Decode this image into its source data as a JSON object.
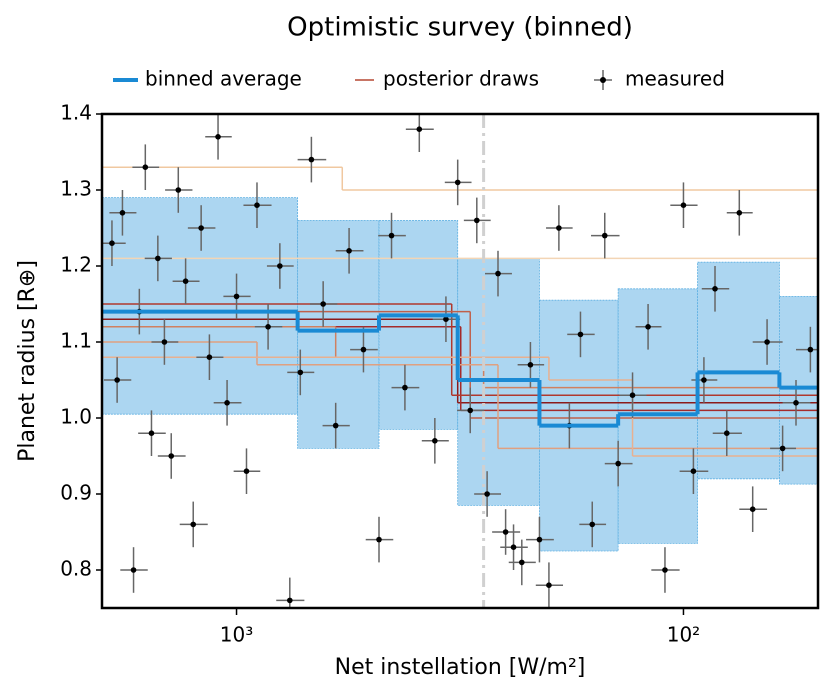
{
  "chart_data": {
    "type": "step",
    "title": "Optimistic survey (binned)",
    "xlabel": "Net instellation [W/m²]",
    "ylabel": "Planet radius [R⊕]",
    "xscale": "log",
    "xlim": [
      2000,
      50
    ],
    "ylim": [
      0.75,
      1.4
    ],
    "xticks": [
      {
        "value": 1000,
        "label": "10³"
      },
      {
        "value": 100,
        "label": "10²"
      }
    ],
    "yticks": [
      0.8,
      0.9,
      {
        "value": 1,
        "label": "1.0"
      },
      1.1,
      1.2,
      1.3,
      1.4
    ],
    "reference_line": {
      "x": 280,
      "color": "#d0d0d0"
    },
    "series": [
      {
        "name": "binned average",
        "color": "#1a8ad4",
        "band_color": "#acd6f1",
        "band_edge": "#5fb0e2",
        "edges": [
          2000,
          730,
          480,
          320,
          210,
          140,
          93,
          61,
          50
        ],
        "values": [
          1.14,
          1.115,
          1.135,
          1.05,
          0.99,
          1.005,
          1.06,
          1.04
        ],
        "band_upper": [
          1.29,
          1.26,
          1.26,
          1.21,
          1.155,
          1.17,
          1.205,
          1.16
        ],
        "band_lower": [
          1.005,
          0.96,
          0.985,
          0.885,
          0.825,
          0.835,
          0.92,
          0.913
        ]
      },
      {
        "name": "posterior draws",
        "color": "#c87565",
        "draws": [
          {
            "color": "#8b1a1a",
            "edges": [
              2000,
              320,
              50
            ],
            "values": [
              1.13,
              1.02
            ]
          },
          {
            "color": "#a52a2a",
            "edges": [
              2000,
              315,
              50
            ],
            "values": [
              1.12,
              1.01
            ]
          },
          {
            "color": "#b0392e",
            "edges": [
              2000,
              330,
              50
            ],
            "values": [
              1.15,
              1.03
            ]
          },
          {
            "color": "#c0604a",
            "edges": [
              2000,
              300,
              50
            ],
            "values": [
              1.14,
              1.0
            ]
          },
          {
            "color": "#d08060",
            "edges": [
              2000,
              600,
              280,
              50
            ],
            "values": [
              1.12,
              1.08,
              1.04
            ]
          },
          {
            "color": "#e0a080",
            "edges": [
              2000,
              900,
              260,
              50
            ],
            "values": [
              1.1,
              1.07,
              0.96
            ]
          },
          {
            "color": "#f0c8a0",
            "edges": [
              2000,
              580,
              50
            ],
            "values": [
              1.33,
              1.3
            ]
          },
          {
            "color": "#f3d5b5",
            "edges": [
              2000,
              50
            ],
            "values": [
              1.21
            ]
          },
          {
            "color": "#e8b090",
            "edges": [
              2000,
              200,
              130,
              50
            ],
            "values": [
              1.08,
              1.05,
              0.95
            ]
          }
        ]
      },
      {
        "name": "measured",
        "color": "#000000",
        "err_color": "#666666",
        "x": [
          1900,
          1850,
          1800,
          1700,
          1650,
          1600,
          1550,
          1500,
          1450,
          1400,
          1350,
          1300,
          1250,
          1200,
          1150,
          1100,
          1050,
          1000,
          950,
          900,
          850,
          800,
          760,
          720,
          680,
          640,
          600,
          560,
          520,
          480,
          450,
          420,
          390,
          360,
          340,
          320,
          300,
          290,
          275,
          260,
          250,
          240,
          230,
          220,
          210,
          200,
          190,
          180,
          170,
          160,
          150,
          140,
          130,
          120,
          110,
          100,
          95,
          90,
          85,
          80,
          75,
          70,
          65,
          60,
          56,
          52
        ],
        "values": [
          1.23,
          1.05,
          1.27,
          0.8,
          1.14,
          1.33,
          0.98,
          1.21,
          1.1,
          0.95,
          1.3,
          1.18,
          0.86,
          1.25,
          1.08,
          1.37,
          1.02,
          1.16,
          0.93,
          1.28,
          1.12,
          1.2,
          0.76,
          1.06,
          1.34,
          1.15,
          0.99,
          1.22,
          1.09,
          0.84,
          1.24,
          1.04,
          1.38,
          0.97,
          1.13,
          1.31,
          1.01,
          1.26,
          0.9,
          1.19,
          0.85,
          0.83,
          0.81,
          1.07,
          0.84,
          0.78,
          1.25,
          0.99,
          1.11,
          0.86,
          1.24,
          0.94,
          1.03,
          1.12,
          0.8,
          1.28,
          0.93,
          1.05,
          1.17,
          0.98,
          1.27,
          0.88,
          1.1,
          0.96,
          1.02,
          1.09
        ],
        "xerr": [
          130,
          130,
          125,
          120,
          115,
          110,
          110,
          105,
          100,
          100,
          95,
          90,
          90,
          85,
          80,
          75,
          75,
          70,
          65,
          65,
          60,
          55,
          55,
          50,
          50,
          45,
          42,
          40,
          37,
          34,
          32,
          30,
          28,
          25,
          24,
          22,
          21,
          20,
          19,
          18,
          18,
          17,
          16,
          15,
          15,
          14,
          13,
          13,
          12,
          11,
          11,
          10,
          9,
          8,
          8,
          7,
          7,
          6,
          6,
          6,
          5,
          5,
          5,
          4,
          4,
          4
        ],
        "yerr": 0.03
      }
    ]
  }
}
